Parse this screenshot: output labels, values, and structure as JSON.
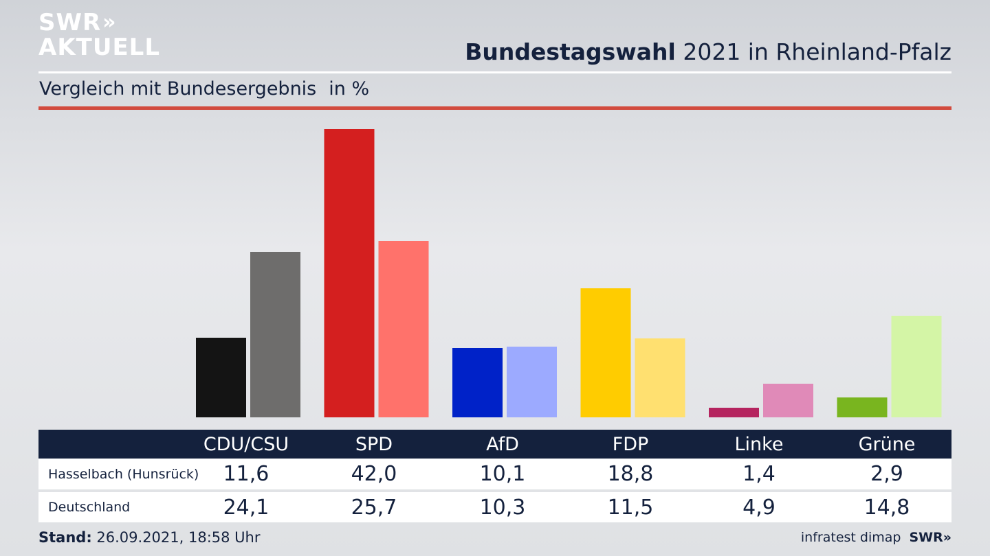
{
  "brand": {
    "logo_line1": "SWR",
    "logo_arrows": "»",
    "logo_line2": "AKTUELL"
  },
  "header": {
    "title_bold": "Bundestagswahl",
    "title_rest": " 2021 in Rheinland-Pfalz",
    "subtitle": "Vergleich mit Bundesergebnis",
    "unit": "in %"
  },
  "table": {
    "parties": [
      "CDU/CSU",
      "SPD",
      "AfD",
      "FDP",
      "Linke",
      "Grüne"
    ],
    "rows": [
      {
        "label": "Hasselbach (Hunsrück)",
        "values": [
          "11,6",
          "42,0",
          "10,1",
          "18,8",
          "1,4",
          "2,9"
        ]
      },
      {
        "label": "Deutschland",
        "values": [
          "24,1",
          "25,7",
          "10,3",
          "11,5",
          "4,9",
          "14,8"
        ]
      }
    ]
  },
  "footer": {
    "stand_label": "Stand:",
    "stand_value": " 26.09.2021, 18:58 Uhr",
    "source": "infratest dimap",
    "source_brand": "SWR»"
  },
  "chart_data": {
    "type": "bar",
    "categories": [
      "CDU/CSU",
      "SPD",
      "AfD",
      "FDP",
      "Linke",
      "Grüne"
    ],
    "series": [
      {
        "name": "Hasselbach (Hunsrück)",
        "values": [
          11.6,
          42.0,
          10.1,
          18.8,
          1.4,
          2.9
        ],
        "colors": [
          "#141414",
          "#d41f1f",
          "#0022c8",
          "#ffcc00",
          "#b5245f",
          "#79b51f"
        ]
      },
      {
        "name": "Deutschland",
        "values": [
          24.1,
          25.7,
          10.3,
          11.5,
          4.9,
          14.8
        ],
        "colors": [
          "#6e6d6c",
          "#ff726b",
          "#9caaff",
          "#ffe070",
          "#e08ab8",
          "#d4f5a6"
        ]
      }
    ],
    "title": "Bundestagswahl 2021 in Rheinland-Pfalz",
    "subtitle": "Vergleich mit Bundesergebnis",
    "ylabel": "in %",
    "ylim": [
      0,
      42
    ],
    "grid": false,
    "legend": "table below chart"
  }
}
